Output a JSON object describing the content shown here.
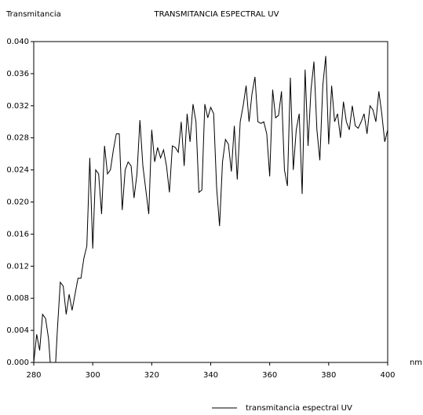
{
  "chart_data": {
    "type": "line",
    "title": "TRANSMITANCIA ESPECTRAL UV",
    "y_label": "Transmitancia",
    "x_label": "nm",
    "x": [
      280,
      281,
      282,
      283,
      284,
      285,
      286,
      287,
      288,
      289,
      290,
      291,
      292,
      293,
      294,
      295,
      296,
      297,
      298,
      299,
      300,
      301,
      302,
      303,
      304,
      305,
      306,
      307,
      308,
      309,
      310,
      311,
      312,
      313,
      314,
      315,
      316,
      317,
      318,
      319,
      320,
      321,
      322,
      323,
      324,
      325,
      326,
      327,
      328,
      329,
      330,
      331,
      332,
      333,
      334,
      335,
      336,
      337,
      338,
      339,
      340,
      341,
      342,
      343,
      344,
      345,
      346,
      347,
      348,
      349,
      350,
      351,
      352,
      353,
      354,
      355,
      356,
      357,
      358,
      359,
      360,
      361,
      362,
      363,
      364,
      365,
      366,
      367,
      368,
      369,
      370,
      371,
      372,
      373,
      374,
      375,
      376,
      377,
      378,
      379,
      380,
      381,
      382,
      383,
      384,
      385,
      386,
      387,
      388,
      389,
      390,
      391,
      392,
      393,
      394,
      395,
      396,
      397,
      398,
      399,
      400
    ],
    "series": [
      {
        "name": "transmitancia espectral UV",
        "color": "#000000",
        "values": [
          0.0,
          0.0035,
          0.0015,
          0.006,
          0.0055,
          0.003,
          -0.002,
          -0.003,
          0.004,
          0.01,
          0.0095,
          0.006,
          0.0085,
          0.0065,
          0.0085,
          0.0105,
          0.0105,
          0.013,
          0.0145,
          0.0255,
          0.0142,
          0.024,
          0.0235,
          0.0185,
          0.027,
          0.0235,
          0.024,
          0.0265,
          0.0285,
          0.0285,
          0.019,
          0.024,
          0.025,
          0.0245,
          0.0205,
          0.0235,
          0.0302,
          0.0245,
          0.0215,
          0.0185,
          0.029,
          0.025,
          0.0268,
          0.0255,
          0.0265,
          0.0245,
          0.0212,
          0.027,
          0.0268,
          0.0262,
          0.03,
          0.0245,
          0.031,
          0.0275,
          0.0322,
          0.03,
          0.0212,
          0.0215,
          0.0322,
          0.0305,
          0.0318,
          0.031,
          0.0218,
          0.017,
          0.025,
          0.0278,
          0.0272,
          0.0238,
          0.0295,
          0.0228,
          0.03,
          0.032,
          0.0345,
          0.03,
          0.0335,
          0.0356,
          0.03,
          0.0298,
          0.03,
          0.0285,
          0.0232,
          0.034,
          0.0305,
          0.0308,
          0.0338,
          0.024,
          0.022,
          0.0355,
          0.024,
          0.029,
          0.031,
          0.021,
          0.0365,
          0.027,
          0.034,
          0.0375,
          0.029,
          0.0252,
          0.0345,
          0.0382,
          0.0272,
          0.0345,
          0.03,
          0.031,
          0.028,
          0.0325,
          0.03,
          0.029,
          0.032,
          0.0295,
          0.0292,
          0.03,
          0.031,
          0.0285,
          0.032,
          0.0315,
          0.03,
          0.0338,
          0.031,
          0.0275,
          0.029
        ]
      }
    ],
    "xlim": [
      280,
      400
    ],
    "xticks": [
      280,
      300,
      320,
      340,
      360,
      380,
      400
    ],
    "ylim": [
      0,
      0.04
    ],
    "yticks": [
      {
        "value": 0,
        "label": "0.000"
      },
      {
        "value": 0.004,
        "label": "0.004"
      },
      {
        "value": 0.008,
        "label": "0.008"
      },
      {
        "value": 0.012,
        "label": "0.012"
      },
      {
        "value": 0.016,
        "label": "0.016"
      },
      {
        "value": 0.02,
        "label": "0.020"
      },
      {
        "value": 0.024,
        "label": "0.024"
      },
      {
        "value": 0.028,
        "label": "0.028"
      },
      {
        "value": 0.032,
        "label": "0.032"
      },
      {
        "value": 0.036,
        "label": "0.036"
      },
      {
        "value": 0.04,
        "label": "0.040"
      }
    ],
    "grid": false
  }
}
